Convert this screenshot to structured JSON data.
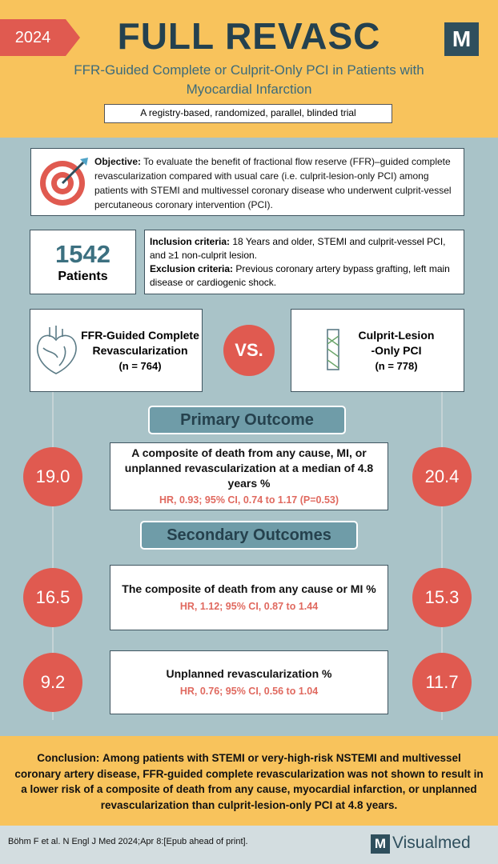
{
  "header": {
    "year": "2024",
    "title": "FULL REVASC",
    "logo": "M",
    "subtitle": "FFR-Guided Complete or Culprit-Only PCI in Patients with Myocardial Infarction",
    "design": "A registry-based, randomized, parallel, blinded trial"
  },
  "objective": {
    "label": "Objective:",
    "text": "To evaluate the benefit of fractional flow reserve (FFR)–guided complete revascularization compared with usual care (i.e. culprit-lesion-only PCI) among patients with STEMI and multivessel coronary disease who underwent culprit-vessel percutaneous coronary intervention (PCI)."
  },
  "population": {
    "count": "1542",
    "label": "Patients"
  },
  "criteria": {
    "inclusion_label": "Inclusion criteria:",
    "inclusion_text": "18 Years and older, STEMI and culprit-vessel PCI, and ≥1 non-culprit lesion.",
    "exclusion_label": "Exclusion criteria:",
    "exclusion_text": "Previous coronary artery bypass grafting, left main disease or cardiogenic shock."
  },
  "arms": [
    {
      "name": "FFR-Guided Complete Revascularization",
      "n": "(n = 764)"
    },
    {
      "name": "Culprit-Lesion\n-Only PCI",
      "n": "(n = 778)"
    }
  ],
  "vs": "VS.",
  "primary_heading": "Primary Outcome",
  "secondary_heading": "Secondary Outcomes",
  "outcomes": [
    {
      "label": "A composite of death from any cause, MI, or unplanned revascularization at a median of 4.8 years %",
      "stats": "HR, 0.93; 95% CI, 0.74 to 1.17 (P=0.53)",
      "left": "19.0",
      "right": "20.4"
    },
    {
      "label": "The composite of death from any cause or MI %",
      "stats": "HR, 1.12; 95% CI, 0.87 to 1.44",
      "left": "16.5",
      "right": "15.3"
    },
    {
      "label": "Unplanned revascularization %",
      "stats": "HR, 0.76; 95% CI, 0.56 to 1.04",
      "left": "9.2",
      "right": "11.7"
    }
  ],
  "conclusion": {
    "label": "Conclusion:",
    "text": "Among patients with STEMI or very-high-risk NSTEMI and multivessel coronary artery disease, FFR-guided complete revascularization was not shown to result in a lower risk of a composite of death from any cause, myocardial infarction, or unplanned revascularization than culprit-lesion-only PCI at 4.8 years."
  },
  "footer": {
    "citation": "Böhm F et al. N Engl J Med 2024;Apr 8:[Epub ahead of print].",
    "brand": "Visualmed",
    "brand_logo": "M"
  }
}
